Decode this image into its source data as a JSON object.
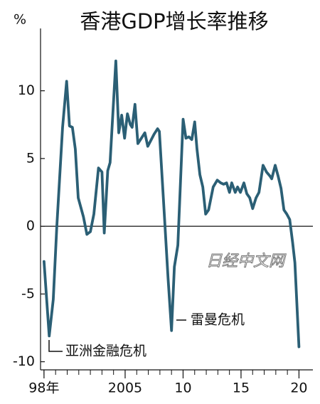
{
  "chart_data": {
    "type": "line",
    "title": "香港GDP增长率推移",
    "y_unit": "%",
    "annotations": [
      "亚洲金融危机",
      "雷曼危机"
    ],
    "watermark": "日经中文网",
    "xlim": [
      1997.7,
      2021.2
    ],
    "ylim": [
      -10.6,
      14.6
    ],
    "xticks": [
      {
        "value": 1998,
        "label": "98年"
      },
      2005,
      {
        "value": 2010,
        "label": "10"
      },
      {
        "value": 2015,
        "label": "15"
      },
      {
        "value": 2020,
        "label": "20"
      }
    ],
    "xminorticks": [
      1998,
      1999,
      2000,
      2001,
      2002,
      2003,
      2004,
      2005,
      2006,
      2007,
      2008,
      2009,
      2010,
      2011,
      2012,
      2013,
      2014,
      2015,
      2016,
      2017,
      2018,
      2019,
      2020
    ],
    "yticks": [
      -10,
      -5,
      0,
      5,
      10
    ],
    "zero_line": true,
    "series": [
      {
        "color": "#2b5f75",
        "x": [
          1998.0,
          1998.45,
          1998.8,
          1999.1,
          1999.6,
          1999.95,
          2000.2,
          2000.45,
          2000.7,
          2000.95,
          2001.4,
          2001.7,
          2002.0,
          2002.3,
          2002.7,
          2003.0,
          2003.2,
          2003.5,
          2003.7,
          2004.2,
          2004.45,
          2004.7,
          2004.95,
          2005.2,
          2005.45,
          2005.6,
          2005.85,
          2006.1,
          2006.4,
          2006.7,
          2006.95,
          2007.2,
          2007.5,
          2007.8,
          2007.95,
          2008.3,
          2008.7,
          2009.0,
          2009.25,
          2009.55,
          2010.0,
          2010.25,
          2010.5,
          2010.75,
          2011.0,
          2011.2,
          2011.45,
          2011.7,
          2011.95,
          2012.2,
          2012.6,
          2012.95,
          2013.25,
          2013.5,
          2013.75,
          2014.0,
          2014.2,
          2014.5,
          2014.7,
          2014.95,
          2015.25,
          2015.5,
          2015.75,
          2016.0,
          2016.3,
          2016.55,
          2016.9,
          2017.2,
          2017.5,
          2017.65,
          2017.95,
          2018.2,
          2018.45,
          2018.7,
          2018.95,
          2019.2,
          2019.45,
          2019.65,
          2020.0
        ],
        "values": [
          -2.6,
          -8.1,
          -5.4,
          -0.1,
          7.3,
          10.7,
          7.4,
          7.3,
          5.7,
          2.1,
          0.7,
          -0.6,
          -0.4,
          0.9,
          4.3,
          4.0,
          -0.5,
          4.1,
          4.7,
          12.2,
          6.9,
          8.2,
          6.5,
          8.3,
          7.5,
          7.3,
          9.0,
          6.1,
          6.5,
          6.9,
          5.9,
          6.3,
          6.8,
          7.2,
          7.0,
          2.0,
          -3.8,
          -7.7,
          -3.0,
          -1.4,
          7.9,
          6.5,
          6.6,
          6.4,
          7.7,
          5.7,
          3.8,
          2.9,
          0.9,
          1.2,
          2.9,
          3.4,
          3.2,
          3.1,
          3.2,
          2.5,
          3.2,
          2.5,
          2.9,
          2.5,
          3.2,
          2.4,
          2.1,
          1.3,
          2.1,
          2.5,
          4.5,
          4.0,
          3.7,
          3.5,
          4.5,
          3.7,
          2.8,
          1.2,
          0.9,
          0.5,
          -1.2,
          -2.7,
          -8.9
        ]
      }
    ]
  }
}
